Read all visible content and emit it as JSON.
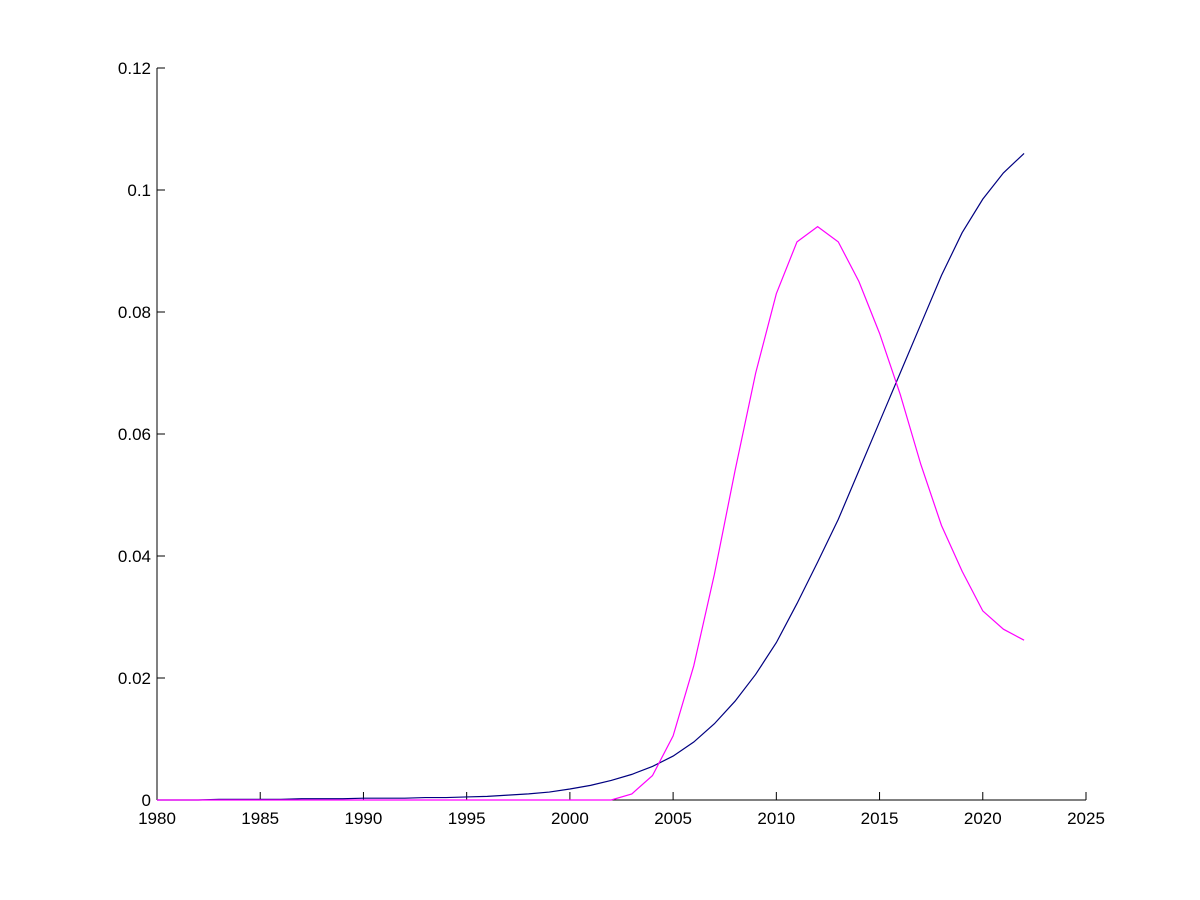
{
  "chart_data": {
    "type": "line",
    "x": [
      1980,
      1981,
      1982,
      1983,
      1984,
      1985,
      1986,
      1987,
      1988,
      1989,
      1990,
      1991,
      1992,
      1993,
      1994,
      1995,
      1996,
      1997,
      1998,
      1999,
      2000,
      2001,
      2002,
      2003,
      2004,
      2005,
      2006,
      2007,
      2008,
      2009,
      2010,
      2011,
      2012,
      2013,
      2014,
      2015,
      2016,
      2017,
      2018,
      2019,
      2020,
      2021,
      2022
    ],
    "series": [
      {
        "color": "#000080",
        "values": [
          0,
          0,
          0,
          0.0001,
          0.0001,
          0.0001,
          0.0001,
          0.0002,
          0.0002,
          0.0002,
          0.0003,
          0.0003,
          0.0003,
          0.0004,
          0.0004,
          0.0005,
          0.0006,
          0.0008,
          0.001,
          0.0013,
          0.0018,
          0.0024,
          0.0032,
          0.0042,
          0.0055,
          0.0072,
          0.0095,
          0.0125,
          0.0162,
          0.0206,
          0.0258,
          0.0322,
          0.039,
          0.046,
          0.054,
          0.062,
          0.07,
          0.078,
          0.086,
          0.093,
          0.0985,
          0.1028,
          0.106
        ]
      },
      {
        "color": "#ff00ff",
        "values": [
          0,
          0,
          0,
          0,
          0,
          0,
          0,
          0,
          0,
          0,
          0,
          0,
          0,
          0,
          0,
          0,
          0,
          0,
          0,
          0,
          0,
          0,
          0,
          0.001,
          0.004,
          0.0105,
          0.022,
          0.037,
          0.054,
          0.07,
          0.083,
          0.0915,
          0.094,
          0.0915,
          0.085,
          0.0765,
          0.0665,
          0.055,
          0.045,
          0.0375,
          0.031,
          0.028,
          0.0262
        ]
      }
    ],
    "xlim": [
      1980,
      2025
    ],
    "xticks": [
      1980,
      1985,
      1990,
      1995,
      2000,
      2005,
      2010,
      2015,
      2020,
      2025
    ],
    "ylim": [
      0,
      0.12
    ],
    "yticks": [
      0,
      0.02,
      0.04,
      0.06,
      0.08,
      0.1,
      0.12
    ]
  }
}
